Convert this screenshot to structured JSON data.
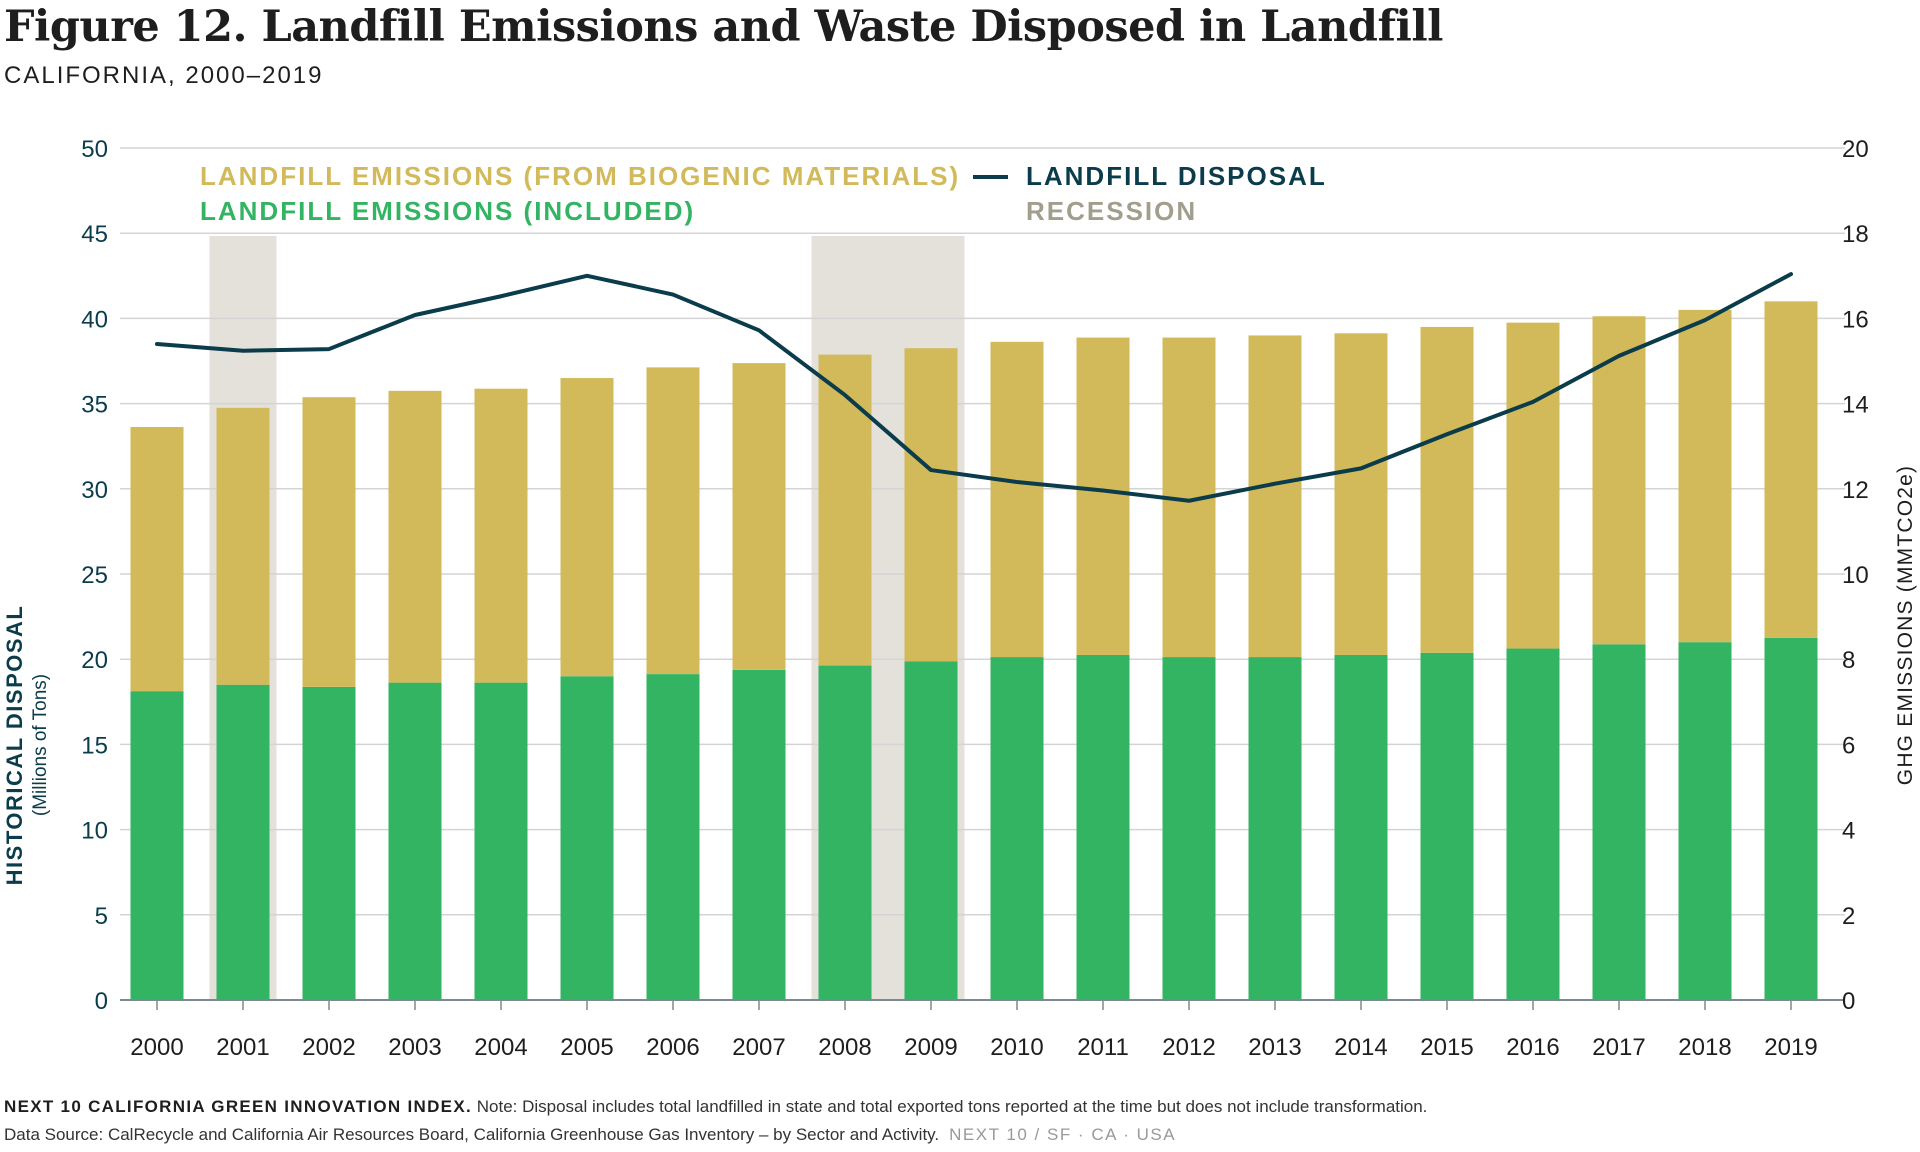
{
  "title": "Figure 12. Landfill Emissions and Waste Disposed in Landfill",
  "subtitle": "CALIFORNIA, 2000–2019",
  "colors": {
    "emissions_included": "#32b462",
    "emissions_biogenic": "#d2b959",
    "disposal_line": "#0b3c4b",
    "recession": "#e3e1da",
    "axis_text": "#0b3c4b",
    "recession_label": "#a19e8d"
  },
  "chart_data": {
    "type": "bar",
    "stacked": true,
    "categories": [
      "2000",
      "2001",
      "2002",
      "2003",
      "2004",
      "2005",
      "2006",
      "2007",
      "2008",
      "2009",
      "2010",
      "2011",
      "2012",
      "2013",
      "2014",
      "2015",
      "2016",
      "2017",
      "2018",
      "2019"
    ],
    "series": [
      {
        "name": "LANDFILL EMISSIONS (INCLUDED)",
        "axis": "right",
        "values": [
          7.25,
          7.4,
          7.35,
          7.45,
          7.45,
          7.6,
          7.65,
          7.75,
          7.85,
          7.95,
          8.05,
          8.1,
          8.05,
          8.05,
          8.1,
          8.15,
          8.25,
          8.35,
          8.4,
          8.5
        ]
      },
      {
        "name": "LANDFILL EMISSIONS (FROM BIOGENIC MATERIALS)",
        "axis": "right",
        "values": [
          6.2,
          6.5,
          6.8,
          6.85,
          6.9,
          7.0,
          7.2,
          7.2,
          7.3,
          7.35,
          7.4,
          7.45,
          7.5,
          7.55,
          7.55,
          7.65,
          7.65,
          7.7,
          7.8,
          7.9
        ]
      },
      {
        "name": "LANDFILL DISPOSAL",
        "type": "line",
        "axis": "left",
        "values": [
          38.5,
          38.1,
          38.2,
          40.2,
          41.3,
          42.5,
          41.4,
          39.3,
          35.5,
          31.1,
          30.4,
          29.9,
          29.3,
          30.3,
          31.2,
          33.2,
          35.1,
          37.8,
          39.9,
          42.6
        ]
      }
    ],
    "recession_label": "RECESSION",
    "recessions": [
      [
        "2001",
        "2001"
      ],
      [
        "2008",
        "2009"
      ]
    ],
    "y_left": {
      "label": "HISTORICAL DISPOSAL",
      "sublabel": "(Millions of Tons)",
      "range": [
        0,
        50
      ],
      "ticks": [
        0,
        5,
        10,
        15,
        20,
        25,
        30,
        35,
        40,
        45,
        50
      ]
    },
    "y_right": {
      "label": "GHG EMISSIONS (MMTCO2e)",
      "range": [
        0,
        20
      ],
      "ticks": [
        0,
        2,
        4,
        6,
        8,
        10,
        12,
        14,
        16,
        18,
        20
      ]
    },
    "grid": "horizontal",
    "legend_position": "top"
  },
  "footer": {
    "org": "NEXT 10 CALIFORNIA GREEN INNOVATION INDEX.",
    "note": "Note: Disposal includes total landfilled in state and total exported tons reported at the time but does not include transformation.",
    "source": "Data Source: CalRecycle and California Air Resources Board, California Greenhouse Gas Inventory – by Sector and Activity.",
    "brand": "NEXT 10  /  SF · CA · USA"
  }
}
